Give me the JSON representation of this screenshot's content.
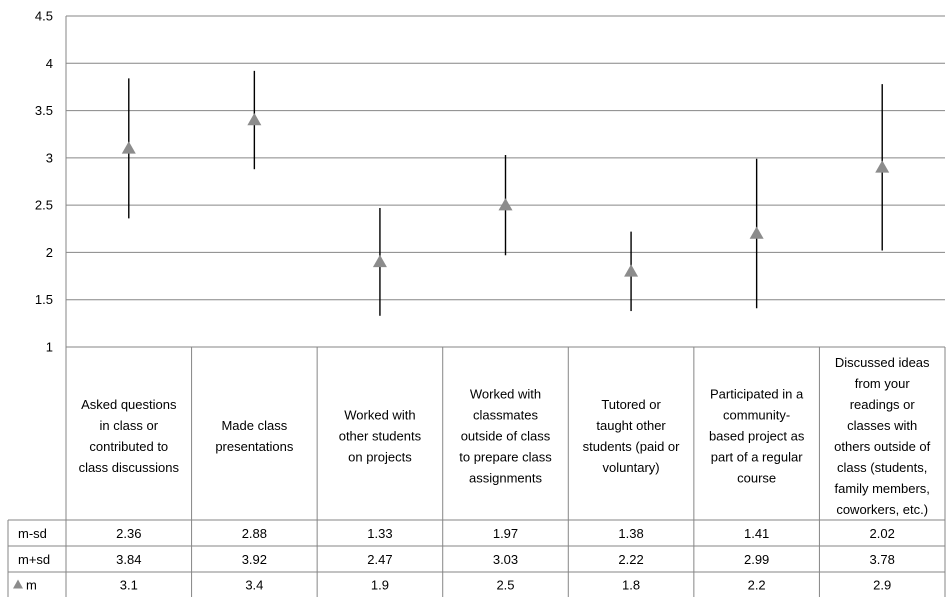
{
  "chart_data": {
    "type": "scatter",
    "title": "",
    "xlabel": "",
    "ylabel": "",
    "ylim": [
      1,
      4.5
    ],
    "yticks": [
      "1",
      "1.5",
      "2",
      "2.5",
      "3",
      "3.5",
      "4",
      "4.5"
    ],
    "grid": true,
    "marker": "triangle",
    "colors": {
      "marker": "#8c8c8c",
      "errorbar": "#000000",
      "grid": "#868686"
    },
    "categories": [
      [
        "Asked questions",
        "in class or",
        "contributed to",
        "class discussions"
      ],
      [
        "Made class",
        "presentations"
      ],
      [
        "Worked with",
        "other students",
        "on projects"
      ],
      [
        "Worked with",
        "classmates",
        "outside of class",
        "to prepare class",
        "assignments"
      ],
      [
        "Tutored or",
        "taught other",
        "students (paid or",
        "voluntary)"
      ],
      [
        "Participated in a",
        "community-",
        "based project as",
        "part of a regular",
        "course"
      ],
      [
        "Discussed ideas",
        "from your",
        "readings or",
        "classes with",
        "others outside of",
        "class (students,",
        "family members,",
        "coworkers, etc.)"
      ]
    ],
    "series": [
      {
        "name": "m-sd",
        "values": [
          2.36,
          2.88,
          1.33,
          1.97,
          1.38,
          1.41,
          2.02
        ],
        "values_text": [
          "2.36",
          "2.88",
          "1.33",
          "1.97",
          "1.38",
          "1.41",
          "2.02"
        ]
      },
      {
        "name": "m+sd",
        "values": [
          3.84,
          3.92,
          2.47,
          3.03,
          2.22,
          2.99,
          3.78
        ],
        "values_text": [
          "3.84",
          "3.92",
          "2.47",
          "3.03",
          "2.22",
          "2.99",
          "3.78"
        ]
      },
      {
        "name": "m",
        "values": [
          3.1,
          3.4,
          1.9,
          2.5,
          1.8,
          2.2,
          2.9
        ],
        "values_text": [
          "3.1",
          "3.4",
          "1.9",
          "2.5",
          "1.8",
          "2.2",
          "2.9"
        ]
      }
    ]
  }
}
